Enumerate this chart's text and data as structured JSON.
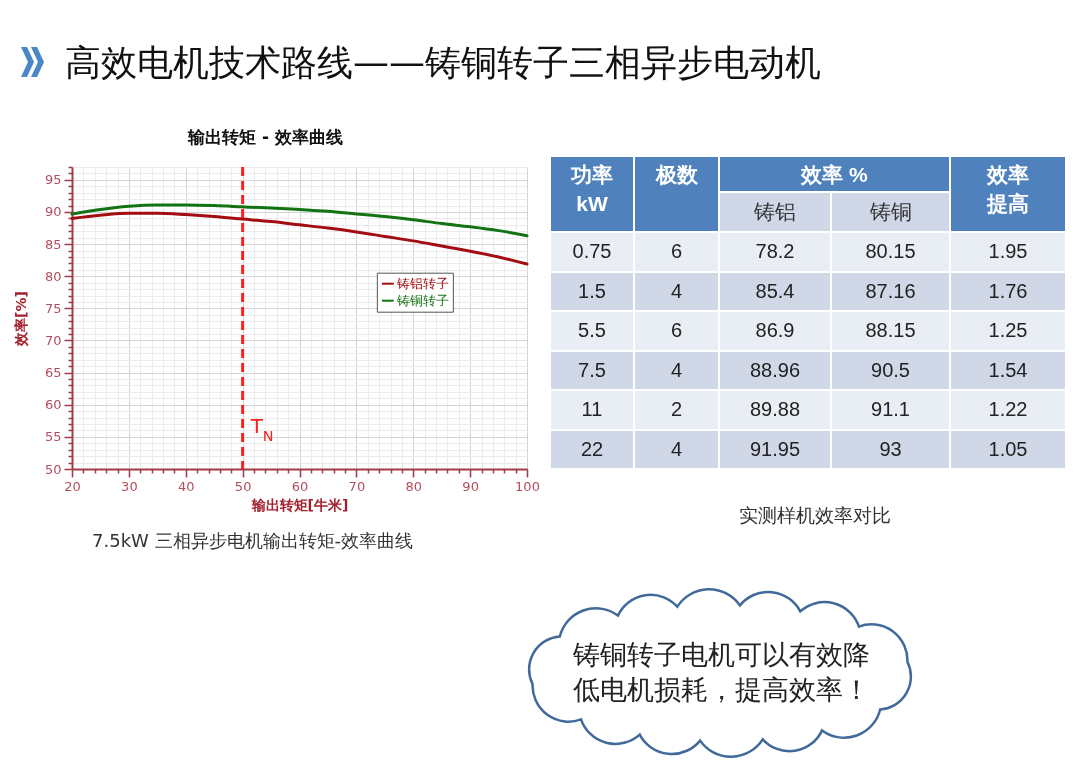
{
  "chart_data": [
    {
      "type": "other",
      "title": "高效电机技术路线——铸铜转子三相异步电动机"
    },
    {
      "type": "line",
      "title": "输出转矩 - 效率曲线",
      "xlabel": "输出转矩[牛米]",
      "ylabel": "效率[%]",
      "x": [
        20,
        25,
        30,
        35,
        40,
        45,
        50,
        55,
        60,
        65,
        70,
        75,
        80,
        85,
        90,
        95,
        100
      ],
      "series": [
        {
          "name": "铸铝转子",
          "color": "#a30d12",
          "values": [
            89.0,
            89.5,
            89.8,
            89.8,
            89.6,
            89.3,
            88.9,
            88.5,
            88.0,
            87.5,
            86.9,
            86.2,
            85.5,
            84.7,
            83.9,
            83.0,
            81.9
          ]
        },
        {
          "name": "铸铜转子",
          "color": "#137313",
          "values": [
            89.7,
            90.4,
            90.9,
            91.1,
            91.1,
            91.0,
            90.8,
            90.6,
            90.4,
            90.1,
            89.7,
            89.3,
            88.8,
            88.2,
            87.7,
            87.1,
            86.3
          ]
        }
      ],
      "xlim": [
        20,
        100
      ],
      "ylim": [
        50,
        97
      ],
      "xticks": [
        20,
        {
          "value": 22,
          "label": null
        },
        {
          "value": 24,
          "label": null
        },
        {
          "value": 26,
          "label": null
        },
        {
          "value": 28,
          "label": null
        },
        30,
        {
          "value": 32,
          "label": null
        },
        {
          "value": 34,
          "label": null
        },
        {
          "value": 36,
          "label": null
        },
        {
          "value": 38,
          "label": null
        },
        40,
        {
          "value": 42,
          "label": null
        },
        {
          "value": 44,
          "label": null
        },
        {
          "value": 46,
          "label": null
        },
        {
          "value": 48,
          "label": null
        },
        50,
        {
          "value": 52,
          "label": null
        },
        {
          "value": 54,
          "label": null
        },
        {
          "value": 56,
          "label": null
        },
        {
          "value": 58,
          "label": null
        },
        60,
        {
          "value": 62,
          "label": null
        },
        {
          "value": 64,
          "label": null
        },
        {
          "value": 66,
          "label": null
        },
        {
          "value": 68,
          "label": null
        },
        70,
        {
          "value": 72,
          "label": null
        },
        {
          "value": 74,
          "label": null
        },
        {
          "value": 76,
          "label": null
        },
        {
          "value": 78,
          "label": null
        },
        80,
        {
          "value": 82,
          "label": null
        },
        {
          "value": 84,
          "label": null
        },
        {
          "value": 86,
          "label": null
        },
        {
          "value": 88,
          "label": null
        },
        90,
        {
          "value": 92,
          "label": null
        },
        {
          "value": 94,
          "label": null
        },
        {
          "value": 96,
          "label": null
        },
        {
          "value": 98,
          "label": null
        },
        100
      ],
      "yticks": [
        50,
        {
          "value": 51,
          "label": null
        },
        {
          "value": 52,
          "label": null
        },
        {
          "value": 53,
          "label": null
        },
        {
          "value": 54,
          "label": null
        },
        55,
        {
          "value": 56,
          "label": null
        },
        {
          "value": 57,
          "label": null
        },
        {
          "value": 58,
          "label": null
        },
        {
          "value": 59,
          "label": null
        },
        60,
        {
          "value": 61,
          "label": null
        },
        {
          "value": 62,
          "label": null
        },
        {
          "value": 63,
          "label": null
        },
        {
          "value": 64,
          "label": null
        },
        65,
        {
          "value": 66,
          "label": null
        },
        {
          "value": 67,
          "label": null
        },
        {
          "value": 68,
          "label": null
        },
        {
          "value": 69,
          "label": null
        },
        70,
        {
          "value": 71,
          "label": null
        },
        {
          "value": 72,
          "label": null
        },
        {
          "value": 73,
          "label": null
        },
        {
          "value": 74,
          "label": null
        },
        75,
        {
          "value": 76,
          "label": null
        },
        {
          "value": 77,
          "label": null
        },
        {
          "value": 78,
          "label": null
        },
        {
          "value": 79,
          "label": null
        },
        80,
        {
          "value": 81,
          "label": null
        },
        {
          "value": 82,
          "label": null
        },
        {
          "value": 83,
          "label": null
        },
        {
          "value": 84,
          "label": null
        },
        85,
        {
          "value": 86,
          "label": null
        },
        {
          "value": 87,
          "label": null
        },
        {
          "value": 88,
          "label": null
        },
        {
          "value": 89,
          "label": null
        },
        90,
        {
          "value": 91,
          "label": null
        },
        {
          "value": 92,
          "label": null
        },
        {
          "value": 93,
          "label": null
        },
        {
          "value": 94,
          "label": null
        },
        95,
        {
          "value": 96,
          "label": null
        },
        {
          "value": 97,
          "label": null
        }
      ],
      "grid": true,
      "legend": "right",
      "ref_lines": [
        {
          "axis": "x",
          "value": 50,
          "label": "T$_{N}$",
          "color": "#ff1f1f",
          "line_style": "dashed"
        }
      ],
      "annotations": [
        "7.5kW 三相异步电机输出转矩-效率曲线"
      ]
    },
    {
      "type": "heatmap",
      "ylabel": "功率 kW",
      "xlabel": "效率 %",
      "categories": [
        "极数",
        "铸铝",
        "铸铜",
        "效率提高"
      ],
      "y_categories": [
        "0.75",
        "1.5",
        "5.5",
        "7.5",
        "11",
        "22"
      ],
      "cells": [
        [
          6,
          78.2,
          80.15,
          1.95
        ],
        [
          4,
          85.4,
          87.16,
          1.76
        ],
        [
          6,
          86.9,
          88.15,
          1.25
        ],
        [
          4,
          88.96,
          90.5,
          1.54
        ],
        [
          2,
          89.88,
          91.1,
          1.22
        ],
        [
          4,
          91.95,
          93,
          1.05
        ]
      ],
      "data_labels": true,
      "annotations": [
        "实测样机效率对比"
      ]
    },
    {
      "type": "other",
      "annotations": [
        "铸铜转子电机可以有效降低电机损耗，提高效率！"
      ]
    }
  ]
}
